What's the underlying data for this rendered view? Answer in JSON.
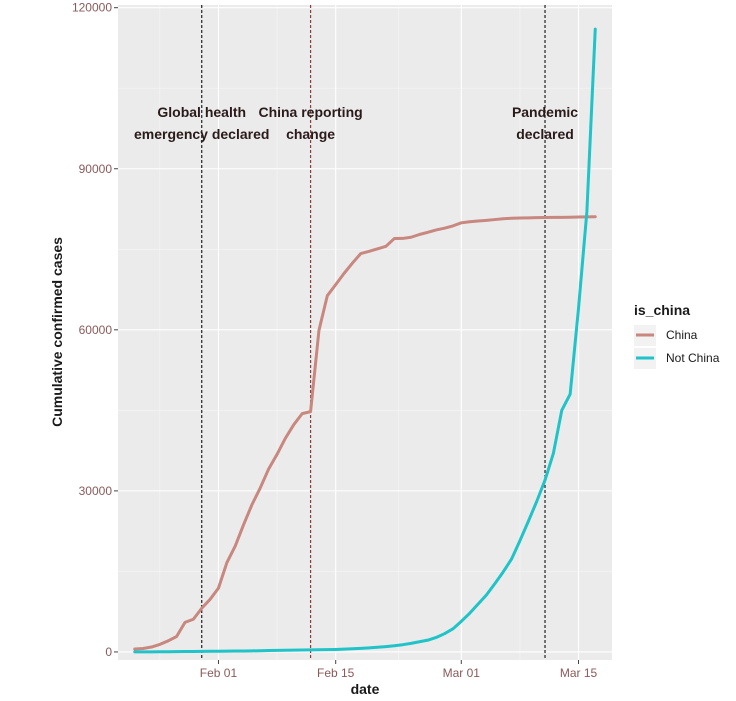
{
  "chart_data": {
    "type": "line",
    "title": "",
    "xlabel": "date",
    "ylabel": "Cumulative confirmed cases",
    "x_start": "2020-01-22",
    "x_end": "2020-03-17",
    "xlim": [
      "2020-01-20",
      "2020-03-19"
    ],
    "ylim": [
      -1500,
      120500
    ],
    "x_ticks": [
      {
        "date": "2020-02-01",
        "label": "Feb 01"
      },
      {
        "date": "2020-02-15",
        "label": "Feb 15"
      },
      {
        "date": "2020-03-01",
        "label": "Mar 01"
      },
      {
        "date": "2020-03-15",
        "label": "Mar 15"
      }
    ],
    "y_ticks": [
      {
        "value": 0,
        "label": "0"
      },
      {
        "value": 30000,
        "label": "30000"
      },
      {
        "value": 60000,
        "label": "60000"
      },
      {
        "value": 90000,
        "label": "90000"
      },
      {
        "value": 120000,
        "label": "120000"
      }
    ],
    "grid": true,
    "legend": {
      "title": "is_china",
      "position": "right"
    },
    "series": [
      {
        "name": "China",
        "color": "#c8877f",
        "x": [
          "2020-01-22",
          "2020-01-23",
          "2020-01-24",
          "2020-01-25",
          "2020-01-26",
          "2020-01-27",
          "2020-01-28",
          "2020-01-29",
          "2020-01-30",
          "2020-01-31",
          "2020-02-01",
          "2020-02-02",
          "2020-02-03",
          "2020-02-04",
          "2020-02-05",
          "2020-02-06",
          "2020-02-07",
          "2020-02-08",
          "2020-02-09",
          "2020-02-10",
          "2020-02-11",
          "2020-02-12",
          "2020-02-13",
          "2020-02-14",
          "2020-02-15",
          "2020-02-16",
          "2020-02-17",
          "2020-02-18",
          "2020-02-19",
          "2020-02-20",
          "2020-02-21",
          "2020-02-22",
          "2020-02-23",
          "2020-02-24",
          "2020-02-25",
          "2020-02-26",
          "2020-02-27",
          "2020-02-28",
          "2020-02-29",
          "2020-03-01",
          "2020-03-02",
          "2020-03-03",
          "2020-03-04",
          "2020-03-05",
          "2020-03-06",
          "2020-03-07",
          "2020-03-08",
          "2020-03-09",
          "2020-03-10",
          "2020-03-11",
          "2020-03-12",
          "2020-03-13",
          "2020-03-14",
          "2020-03-15",
          "2020-03-16",
          "2020-03-17"
        ],
        "y": [
          548,
          643,
          920,
          1406,
          2075,
          2877,
          5509,
          6087,
          8141,
          9802,
          11891,
          16630,
          19716,
          23707,
          27440,
          30587,
          34110,
          36814,
          39829,
          42354,
          44386,
          44759,
          59895,
          66358,
          68413,
          70513,
          72434,
          74211,
          74619,
          75077,
          75550,
          77001,
          77022,
          77241,
          77754,
          78166,
          78600,
          78928,
          79356,
          79932,
          80136,
          80261,
          80386,
          80537,
          80690,
          80770,
          80823,
          80860,
          80887,
          80921,
          80932,
          80945,
          80977,
          81003,
          81033,
          81058
        ]
      },
      {
        "name": "Not China",
        "color": "#1fc3c8",
        "x": [
          "2020-01-22",
          "2020-01-23",
          "2020-01-24",
          "2020-01-25",
          "2020-01-26",
          "2020-01-27",
          "2020-01-28",
          "2020-01-29",
          "2020-01-30",
          "2020-01-31",
          "2020-02-01",
          "2020-02-02",
          "2020-02-03",
          "2020-02-04",
          "2020-02-05",
          "2020-02-06",
          "2020-02-07",
          "2020-02-08",
          "2020-02-09",
          "2020-02-10",
          "2020-02-11",
          "2020-02-12",
          "2020-02-13",
          "2020-02-14",
          "2020-02-15",
          "2020-02-16",
          "2020-02-17",
          "2020-02-18",
          "2020-02-19",
          "2020-02-20",
          "2020-02-21",
          "2020-02-22",
          "2020-02-23",
          "2020-02-24",
          "2020-02-25",
          "2020-02-26",
          "2020-02-27",
          "2020-02-28",
          "2020-02-29",
          "2020-03-01",
          "2020-03-02",
          "2020-03-03",
          "2020-03-04",
          "2020-03-05",
          "2020-03-06",
          "2020-03-07",
          "2020-03-08",
          "2020-03-09",
          "2020-03-10",
          "2020-03-11",
          "2020-03-12",
          "2020-03-13",
          "2020-03-14",
          "2020-03-15",
          "2020-03-16",
          "2020-03-17"
        ],
        "y": [
          7,
          11,
          20,
          27,
          46,
          60,
          74,
          87,
          110,
          124,
          140,
          161,
          171,
          185,
          205,
          230,
          265,
          290,
          310,
          330,
          355,
          375,
          400,
          430,
          460,
          520,
          590,
          660,
          760,
          870,
          1000,
          1150,
          1350,
          1600,
          1900,
          2200,
          2700,
          3400,
          4300,
          5700,
          7200,
          8900,
          10600,
          12700,
          14900,
          17300,
          20700,
          24300,
          28000,
          32000,
          37000,
          45000,
          48000,
          64000,
          82000,
          116000
        ]
      }
    ],
    "annotations": [
      {
        "date": "2020-01-30",
        "lines": [
          "Global health",
          "emergency declared"
        ]
      },
      {
        "date": "2020-02-12",
        "lines": [
          "China reporting",
          "change"
        ]
      },
      {
        "date": "2020-03-11",
        "lines": [
          "Pandemic",
          "declared"
        ]
      }
    ]
  }
}
